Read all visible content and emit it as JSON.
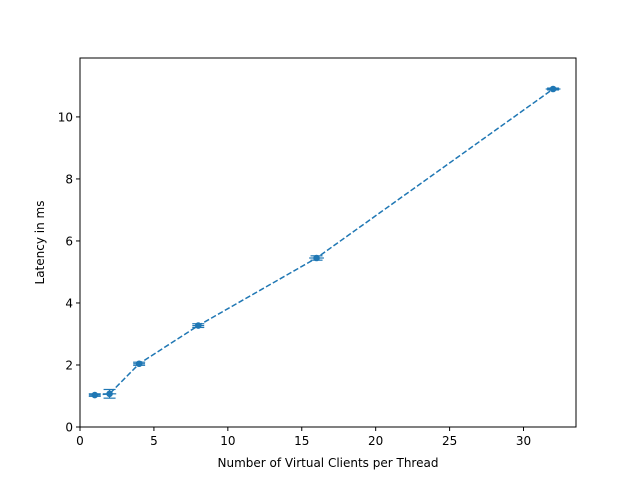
{
  "chart_data": {
    "type": "line",
    "title": "",
    "xlabel": "Number of Virtual Clients per Thread",
    "ylabel": "Latency in ms",
    "xlim": [
      0,
      33.55
    ],
    "ylim": [
      0,
      11.9
    ],
    "x_ticks": [
      0,
      5,
      10,
      15,
      20,
      25,
      30
    ],
    "y_ticks": [
      0,
      2,
      4,
      6,
      8,
      10
    ],
    "grid": false,
    "legend": "none",
    "series": [
      {
        "x": [
          1,
          2,
          4,
          8,
          16,
          32
        ],
        "y": [
          1.03,
          1.07,
          2.04,
          3.27,
          5.45,
          10.9
        ],
        "yerr": [
          0.04,
          0.14,
          0.05,
          0.06,
          0.07,
          0.03
        ],
        "xerr": [
          0.4,
          0.45,
          0.4,
          0.4,
          0.5,
          0.5
        ],
        "color": "#1f77b4",
        "linestyle": "dashed",
        "marker": "circle"
      }
    ]
  }
}
